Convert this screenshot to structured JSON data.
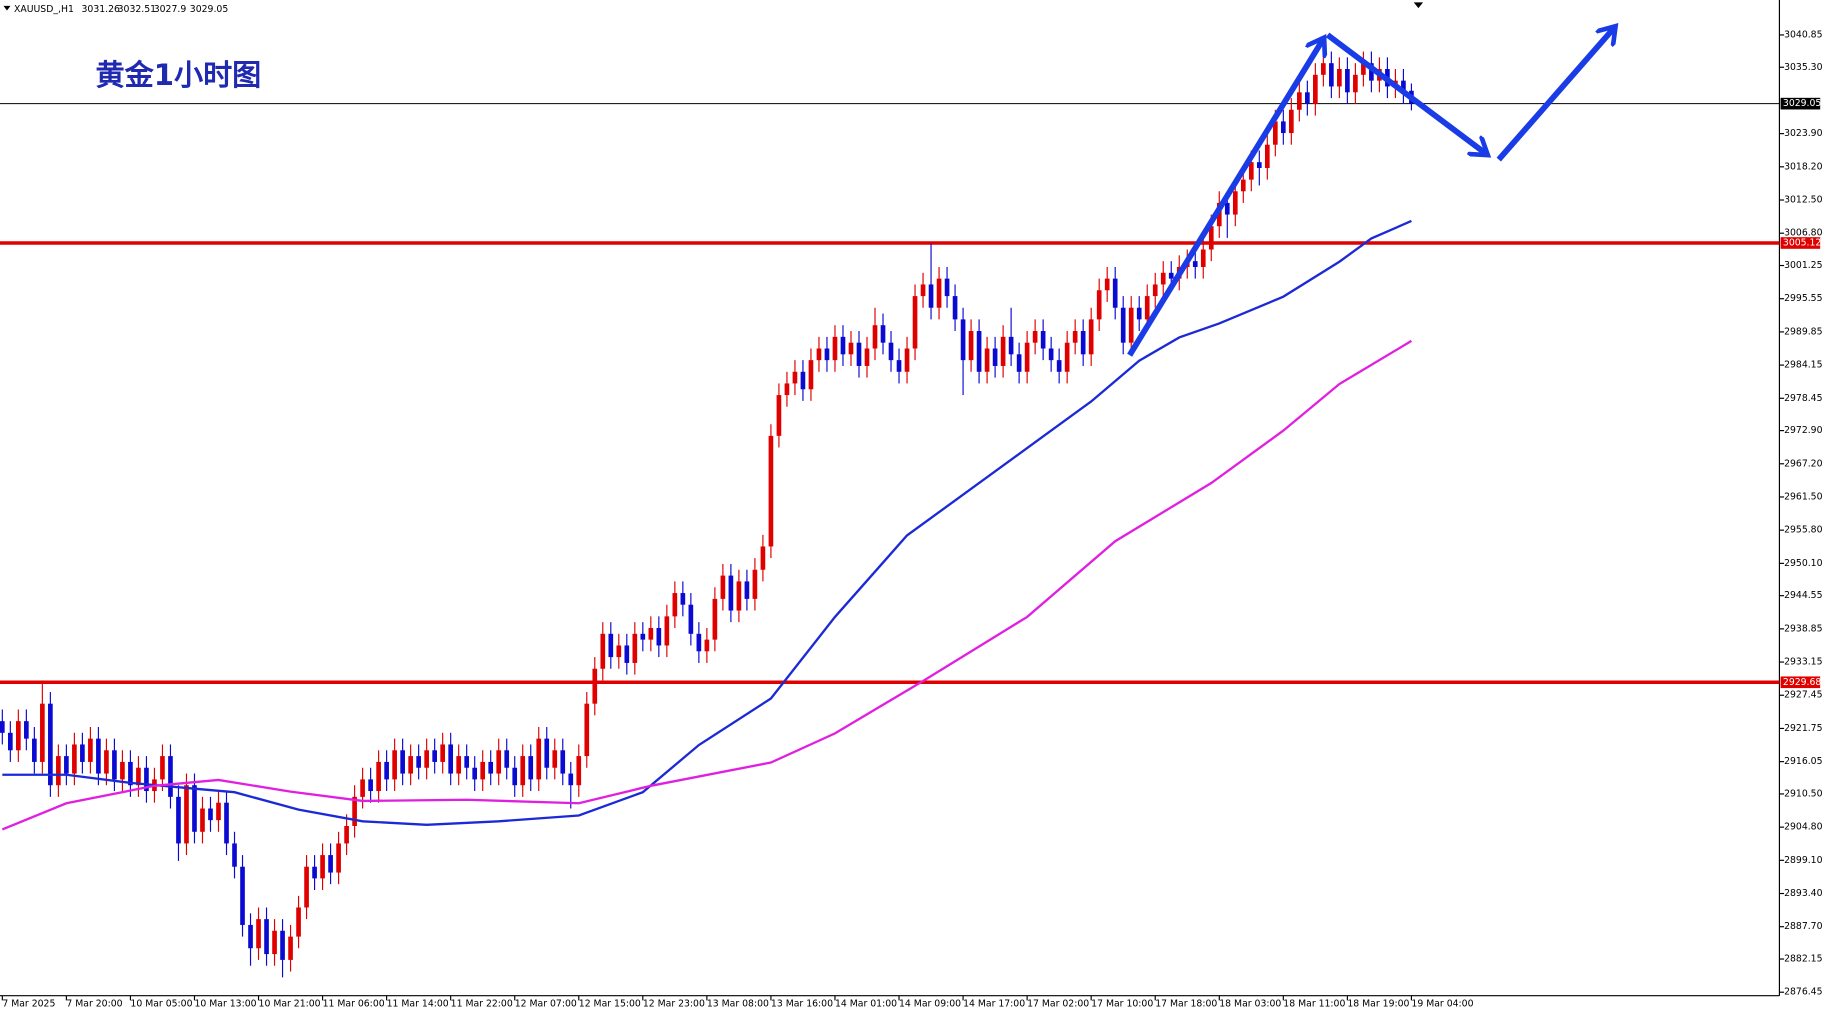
{
  "chart_data": {
    "type": "candlestick",
    "title": "黄金1小时图",
    "symbol": "XAUUSD_,H1",
    "up_color": "#e00000",
    "down_color": "#0a0ad2",
    "ylim": [
      2875.85,
      3046.85
    ],
    "yticks": [
      3040.85,
      {
        "value": 3035.3,
        "label": "3035.30"
      },
      {
        "value": 3023.9,
        "label": "3023.90"
      },
      {
        "value": 3018.2,
        "label": "3018.20"
      },
      {
        "value": 3012.5,
        "label": "3012.50"
      },
      {
        "value": 3006.8,
        "label": "3006.80"
      },
      3001.25,
      2995.55,
      2989.85,
      2984.15,
      2978.45,
      {
        "value": 2972.9,
        "label": "2972.90"
      },
      {
        "value": 2967.2,
        "label": "2967.20"
      },
      {
        "value": 2961.5,
        "label": "2961.50"
      },
      {
        "value": 2955.8,
        "label": "2955.80"
      },
      {
        "value": 2950.1,
        "label": "2950.10"
      },
      2944.55,
      2938.85,
      2933.15,
      2927.45,
      2921.75,
      2916.05,
      {
        "value": 2910.5,
        "label": "2910.50"
      },
      {
        "value": 2904.8,
        "label": "2904.80"
      },
      {
        "value": 2899.1,
        "label": "2899.10"
      },
      {
        "value": 2893.4,
        "label": "2893.40"
      },
      {
        "value": 2887.7,
        "label": "2887.70"
      },
      2882.15,
      2876.45
    ],
    "hlines": [
      {
        "value": 3029.05,
        "color": "#000000"
      },
      {
        "value": 3005.12,
        "color": "#e00000"
      },
      {
        "value": 2929.68,
        "color": "#e00000"
      }
    ],
    "categories": [
      "7 Mar 2025",
      null,
      null,
      null,
      null,
      null,
      null,
      null,
      "7 Mar 20:00",
      null,
      null,
      null,
      null,
      null,
      null,
      null,
      "10 Mar 05:00",
      null,
      null,
      null,
      null,
      null,
      null,
      null,
      "10 Mar 13:00",
      null,
      null,
      null,
      null,
      null,
      null,
      null,
      "10 Mar 21:00",
      null,
      null,
      null,
      null,
      null,
      null,
      null,
      "11 Mar 06:00",
      null,
      null,
      null,
      null,
      null,
      null,
      null,
      "11 Mar 14:00",
      null,
      null,
      null,
      null,
      null,
      null,
      null,
      "11 Mar 22:00",
      null,
      null,
      null,
      null,
      null,
      null,
      null,
      "12 Mar 07:00",
      null,
      null,
      null,
      null,
      null,
      null,
      null,
      "12 Mar 15:00",
      null,
      null,
      null,
      null,
      null,
      null,
      null,
      "12 Mar 23:00",
      null,
      null,
      null,
      null,
      null,
      null,
      null,
      "13 Mar 08:00",
      null,
      null,
      null,
      null,
      null,
      null,
      null,
      "13 Mar 16:00",
      null,
      null,
      null,
      null,
      null,
      null,
      null,
      "14 Mar 01:00",
      null,
      null,
      null,
      null,
      null,
      null,
      null,
      "14 Mar 09:00",
      null,
      null,
      null,
      null,
      null,
      null,
      null,
      "14 Mar 17:00",
      null,
      null,
      null,
      null,
      null,
      null,
      null,
      "17 Mar 02:00",
      null,
      null,
      null,
      null,
      null,
      null,
      null,
      "17 Mar 10:00",
      null,
      null,
      null,
      null,
      null,
      null,
      null,
      "17 Mar 18:00",
      null,
      null,
      null,
      null,
      null,
      null,
      null,
      "18 Mar 03:00",
      null,
      null,
      null,
      null,
      null,
      null,
      null,
      "18 Mar 11:00",
      null,
      null,
      null,
      null,
      null,
      null,
      null,
      "18 Mar 19:00",
      null,
      null,
      null,
      null,
      null,
      null,
      null,
      "19 Mar 04:00"
    ],
    "candles": [
      [
        2923,
        2925,
        2919,
        2921
      ],
      [
        2921,
        2923,
        2916,
        2918
      ],
      [
        2918,
        2925,
        2916,
        2923
      ],
      [
        2923,
        2925,
        2918,
        2920
      ],
      [
        2920,
        2922,
        2914,
        2916
      ],
      [
        2916,
        2930,
        2914,
        2926
      ],
      [
        2926,
        2928,
        2910,
        2912
      ],
      [
        2912,
        2919,
        2910,
        2917
      ],
      [
        2917,
        2919,
        2912,
        2914
      ],
      [
        2914,
        2921,
        2912,
        2919
      ],
      [
        2919,
        2921,
        2914,
        2916
      ],
      [
        2916,
        2922,
        2914,
        2920
      ],
      [
        2920,
        2922,
        2912,
        2914
      ],
      [
        2914,
        2920,
        2912,
        2918
      ],
      [
        2918,
        2920,
        2911,
        2913
      ],
      [
        2913,
        2918,
        2911,
        2916
      ],
      [
        2916,
        2918,
        2910,
        2912
      ],
      [
        2912,
        2917,
        2910,
        2915
      ],
      [
        2915,
        2917,
        2909,
        2911
      ],
      [
        2911,
        2915,
        2909,
        2913
      ],
      [
        2913,
        2919,
        2911,
        2917
      ],
      [
        2917,
        2919,
        2908,
        2910
      ],
      [
        2910,
        2912,
        2899,
        2902
      ],
      [
        2902,
        2914,
        2900,
        2912
      ],
      [
        2912,
        2914,
        2902,
        2904
      ],
      [
        2904,
        2910,
        2902,
        2908
      ],
      [
        2908,
        2910,
        2904,
        2906
      ],
      [
        2906,
        2911,
        2904,
        2909
      ],
      [
        2909,
        2911,
        2900,
        2902
      ],
      [
        2902,
        2904,
        2896,
        2898
      ],
      [
        2898,
        2900,
        2886,
        2888
      ],
      [
        2888,
        2890,
        2881,
        2884
      ],
      [
        2884,
        2891,
        2882,
        2889
      ],
      [
        2889,
        2891,
        2881,
        2883
      ],
      [
        2883,
        2889,
        2881,
        2887
      ],
      [
        2887,
        2889,
        2879,
        2882
      ],
      [
        2882,
        2888,
        2880,
        2886
      ],
      [
        2886,
        2893,
        2884,
        2891
      ],
      [
        2891,
        2900,
        2889,
        2898
      ],
      [
        2898,
        2900,
        2894,
        2896
      ],
      [
        2896,
        2902,
        2894,
        2900
      ],
      [
        2900,
        2902,
        2895,
        2897
      ],
      [
        2897,
        2904,
        2895,
        2902
      ],
      [
        2902,
        2907,
        2900,
        2905
      ],
      [
        2905,
        2912,
        2903,
        2910
      ],
      [
        2910,
        2915,
        2908,
        2913
      ],
      [
        2913,
        2915,
        2909,
        2911
      ],
      [
        2911,
        2918,
        2909,
        2916
      ],
      [
        2916,
        2918,
        2911,
        2913
      ],
      [
        2913,
        2920,
        2911,
        2918
      ],
      [
        2918,
        2920,
        2912,
        2914
      ],
      [
        2914,
        2919,
        2912,
        2917
      ],
      [
        2917,
        2919,
        2913,
        2915
      ],
      [
        2915,
        2920,
        2913,
        2918
      ],
      [
        2918,
        2920,
        2914,
        2916
      ],
      [
        2916,
        2921,
        2914,
        2919
      ],
      [
        2919,
        2921,
        2912,
        2914
      ],
      [
        2914,
        2919,
        2912,
        2917
      ],
      [
        2917,
        2919,
        2913,
        2915
      ],
      [
        2915,
        2917,
        2911,
        2913
      ],
      [
        2913,
        2918,
        2911,
        2916
      ],
      [
        2916,
        2918,
        2912,
        2914
      ],
      [
        2914,
        2920,
        2912,
        2918
      ],
      [
        2918,
        2920,
        2913,
        2915
      ],
      [
        2915,
        2917,
        2910,
        2912
      ],
      [
        2912,
        2919,
        2910,
        2917
      ],
      [
        2917,
        2919,
        2911,
        2913
      ],
      [
        2913,
        2922,
        2911,
        2920
      ],
      [
        2920,
        2922,
        2913,
        2915
      ],
      [
        2915,
        2920,
        2913,
        2918
      ],
      [
        2918,
        2920,
        2912,
        2914
      ],
      [
        2914,
        2916,
        2908,
        2912
      ],
      [
        2912,
        2919,
        2910,
        2917
      ],
      [
        2917,
        2928,
        2915,
        2926
      ],
      [
        2926,
        2934,
        2924,
        2932
      ],
      [
        2932,
        2940,
        2930,
        2938
      ],
      [
        2938,
        2940,
        2932,
        2934
      ],
      [
        2934,
        2938,
        2932,
        2936
      ],
      [
        2936,
        2938,
        2931,
        2933
      ],
      [
        2933,
        2940,
        2931,
        2938
      ],
      [
        2938,
        2940,
        2935,
        2937
      ],
      [
        2937,
        2941,
        2935,
        2939
      ],
      [
        2939,
        2941,
        2934,
        2936
      ],
      [
        2936,
        2943,
        2934,
        2941
      ],
      [
        2941,
        2947,
        2939,
        2945
      ],
      [
        2945,
        2947,
        2941,
        2943
      ],
      [
        2943,
        2945,
        2936,
        2938
      ],
      [
        2938,
        2940,
        2933,
        2935
      ],
      [
        2935,
        2939,
        2933,
        2937
      ],
      [
        2937,
        2946,
        2935,
        2944
      ],
      [
        2944,
        2950,
        2942,
        2948
      ],
      [
        2948,
        2950,
        2940,
        2942
      ],
      [
        2942,
        2949,
        2940,
        2947
      ],
      [
        2947,
        2949,
        2942,
        2944
      ],
      [
        2944,
        2951,
        2942,
        2949
      ],
      [
        2949,
        2955,
        2947,
        2953
      ],
      [
        2953,
        2974,
        2951,
        2972
      ],
      [
        2972,
        2981,
        2970,
        2979
      ],
      [
        2979,
        2983,
        2977,
        2981
      ],
      [
        2981,
        2985,
        2979,
        2983
      ],
      [
        2983,
        2985,
        2978,
        2980
      ],
      [
        2980,
        2987,
        2978,
        2985
      ],
      [
        2985,
        2989,
        2983,
        2987
      ],
      [
        2987,
        2989,
        2983,
        2985
      ],
      [
        2985,
        2991,
        2983,
        2989
      ],
      [
        2989,
        2991,
        2984,
        2986
      ],
      [
        2986,
        2990,
        2984,
        2988
      ],
      [
        2988,
        2990,
        2982,
        2984
      ],
      [
        2984,
        2989,
        2982,
        2987
      ],
      [
        2987,
        2994,
        2985,
        2991
      ],
      [
        2991,
        2993,
        2986,
        2988
      ],
      [
        2988,
        2990,
        2983,
        2985
      ],
      [
        2985,
        2987,
        2981,
        2983
      ],
      [
        2983,
        2989,
        2981,
        2987
      ],
      [
        2987,
        2998,
        2985,
        2996
      ],
      [
        2996,
        3000,
        2994,
        2998
      ],
      [
        2998,
        3005,
        2992,
        2994
      ],
      [
        2994,
        3001,
        2992,
        2999
      ],
      [
        2999,
        3001,
        2994,
        2996
      ],
      [
        2996,
        2998,
        2990,
        2992
      ],
      [
        2992,
        2994,
        2979,
        2985
      ],
      [
        2985,
        2992,
        2983,
        2990
      ],
      [
        2990,
        2992,
        2981,
        2983
      ],
      [
        2983,
        2989,
        2981,
        2987
      ],
      [
        2987,
        2989,
        2982,
        2984
      ],
      [
        2984,
        2991,
        2982,
        2989
      ],
      [
        2989,
        2994,
        2984,
        2986
      ],
      [
        2986,
        2988,
        2981,
        2983
      ],
      [
        2983,
        2990,
        2981,
        2988
      ],
      [
        2988,
        2992,
        2986,
        2990
      ],
      [
        2990,
        2992,
        2985,
        2987
      ],
      [
        2987,
        2989,
        2983,
        2985
      ],
      [
        2985,
        2987,
        2981,
        2983
      ],
      [
        2983,
        2990,
        2981,
        2988
      ],
      [
        2988,
        2992,
        2986,
        2990
      ],
      [
        2990,
        2992,
        2984,
        2986
      ],
      [
        2986,
        2994,
        2984,
        2992
      ],
      [
        2992,
        2999,
        2990,
        2997
      ],
      [
        2997,
        3001,
        2995,
        2999
      ],
      [
        2999,
        3001,
        2992,
        2994
      ],
      [
        2994,
        2996,
        2986,
        2988
      ],
      [
        2988,
        2996,
        2986,
        2994
      ],
      [
        2994,
        2996,
        2990,
        2992
      ],
      [
        2992,
        2998,
        2990,
        2996
      ],
      [
        2996,
        3000,
        2994,
        2998
      ],
      [
        2998,
        3002,
        2996,
        3000
      ],
      [
        3000,
        3002,
        2997,
        2999
      ],
      [
        2999,
        3003,
        2997,
        3001
      ],
      [
        3001,
        3004,
        2999,
        3002
      ],
      [
        3002,
        3004,
        2999,
        3001
      ],
      [
        3001,
        3006,
        2999,
        3004
      ],
      [
        3004,
        3010,
        3002,
        3008
      ],
      [
        3008,
        3014,
        3006,
        3012
      ],
      [
        3012,
        3014,
        3006,
        3010
      ],
      [
        3010,
        3016,
        3008,
        3014
      ],
      [
        3014,
        3018,
        3012,
        3016
      ],
      [
        3016,
        3021,
        3014,
        3019
      ],
      [
        3019,
        3021,
        3015,
        3018
      ],
      [
        3018,
        3024,
        3016,
        3022
      ],
      [
        3022,
        3028,
        3020,
        3026
      ],
      [
        3026,
        3028,
        3022,
        3024
      ],
      [
        3024,
        3030,
        3022,
        3028
      ],
      [
        3028,
        3033,
        3026,
        3031
      ],
      [
        3031,
        3033,
        3027,
        3029
      ],
      [
        3029,
        3036,
        3027,
        3034
      ],
      [
        3034,
        3038,
        3032,
        3036
      ],
      [
        3036,
        3038,
        3030,
        3032
      ],
      [
        3032,
        3037,
        3030,
        3035
      ],
      [
        3035,
        3037,
        3029,
        3031
      ],
      [
        3031,
        3036,
        3029,
        3034
      ],
      [
        3034,
        3038,
        3032,
        3036
      ],
      [
        3036,
        3038,
        3031,
        3033
      ],
      [
        3033,
        3037,
        3031,
        3035
      ],
      [
        3035,
        3037,
        3030,
        3032
      ],
      [
        3032,
        3035,
        3030,
        3033
      ],
      [
        3033,
        3035,
        3029,
        3031.26
      ],
      [
        3031.26,
        3032.51,
        3027.9,
        3029.05
      ]
    ],
    "lines": [
      {
        "color": "#1c2ad6",
        "x": [
          0,
          8,
          16,
          24,
          29,
          37,
          45,
          53,
          62,
          72,
          80,
          87,
          96,
          104,
          113,
          123,
          131,
          136,
          142,
          147,
          152,
          160,
          167,
          171,
          176
        ],
        "values": [
          2913.8,
          2913.8,
          2912.4,
          2911.4,
          2910.8,
          2907.8,
          2905.8,
          2905.2,
          2905.8,
          2906.8,
          2910.8,
          2918.9,
          2926.9,
          2940.9,
          2954.9,
          2964.9,
          2972.9,
          2977.9,
          2984.9,
          2988.9,
          2991.3,
          2995.9,
          3001.9,
          3005.9,
          3008.9
        ]
      },
      {
        "color": "#e020e0",
        "x": [
          0,
          8,
          19,
          27,
          36,
          45,
          58,
          72,
          81,
          96,
          104,
          115,
          128,
          139,
          151,
          160,
          167,
          176
        ],
        "values": [
          2904.4,
          2908.9,
          2911.9,
          2912.9,
          2910.9,
          2909.3,
          2909.5,
          2908.9,
          2911.9,
          2915.9,
          2920.9,
          2929.9,
          2940.9,
          2953.9,
          2963.9,
          2972.9,
          2980.9,
          2988.3
        ]
      }
    ]
  }
}
